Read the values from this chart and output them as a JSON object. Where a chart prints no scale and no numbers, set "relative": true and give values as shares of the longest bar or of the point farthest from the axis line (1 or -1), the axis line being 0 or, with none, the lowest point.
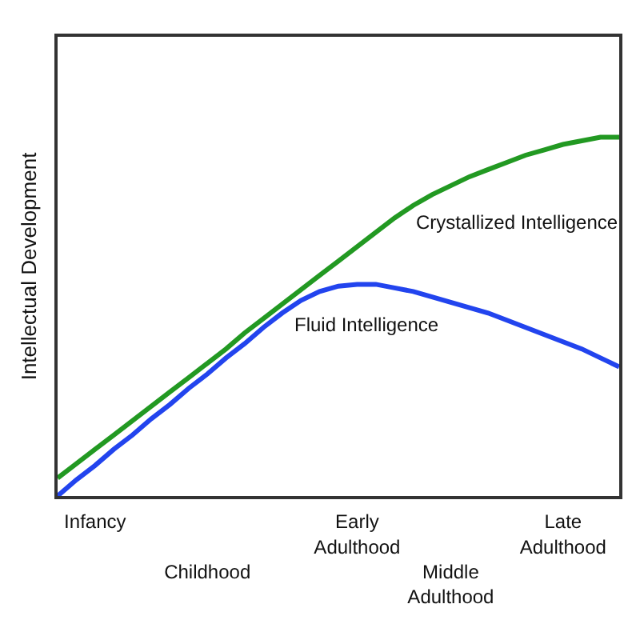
{
  "chart_data": {
    "type": "line",
    "ylabel": "Intellectual Development",
    "relative": true,
    "categories": [
      null,
      null,
      "Infancy",
      null,
      null,
      null,
      null,
      null,
      "Childhood",
      null,
      null,
      null,
      null,
      null,
      null,
      null,
      "Early Adulthood",
      null,
      null,
      null,
      null,
      "Middle Adulthood",
      null,
      null,
      null,
      null,
      null,
      "Late Adulthood",
      null,
      null,
      null
    ],
    "series": [
      {
        "name": "Crystallized Intelligence",
        "color": "#229922",
        "values": [
          0.05,
          0.09,
          0.13,
          0.17,
          0.21,
          0.25,
          0.29,
          0.33,
          0.37,
          0.41,
          0.455,
          0.495,
          0.535,
          0.575,
          0.615,
          0.655,
          0.695,
          0.735,
          0.775,
          0.81,
          0.84,
          0.865,
          0.89,
          0.91,
          0.93,
          0.95,
          0.965,
          0.98,
          0.99,
          1.0,
          1.0
        ]
      },
      {
        "name": "Fluid Intelligence",
        "color": "#2244ee",
        "values": [
          0,
          0.045,
          0.085,
          0.13,
          0.17,
          0.215,
          0.255,
          0.3,
          0.34,
          0.385,
          0.425,
          0.47,
          0.51,
          0.545,
          0.57,
          0.585,
          0.59,
          0.59,
          0.58,
          0.57,
          0.555,
          0.54,
          0.525,
          0.51,
          0.49,
          0.47,
          0.45,
          0.43,
          0.41,
          0.385,
          0.36
        ]
      }
    ],
    "legend": false,
    "marker": "none",
    "line_style": "solid"
  }
}
